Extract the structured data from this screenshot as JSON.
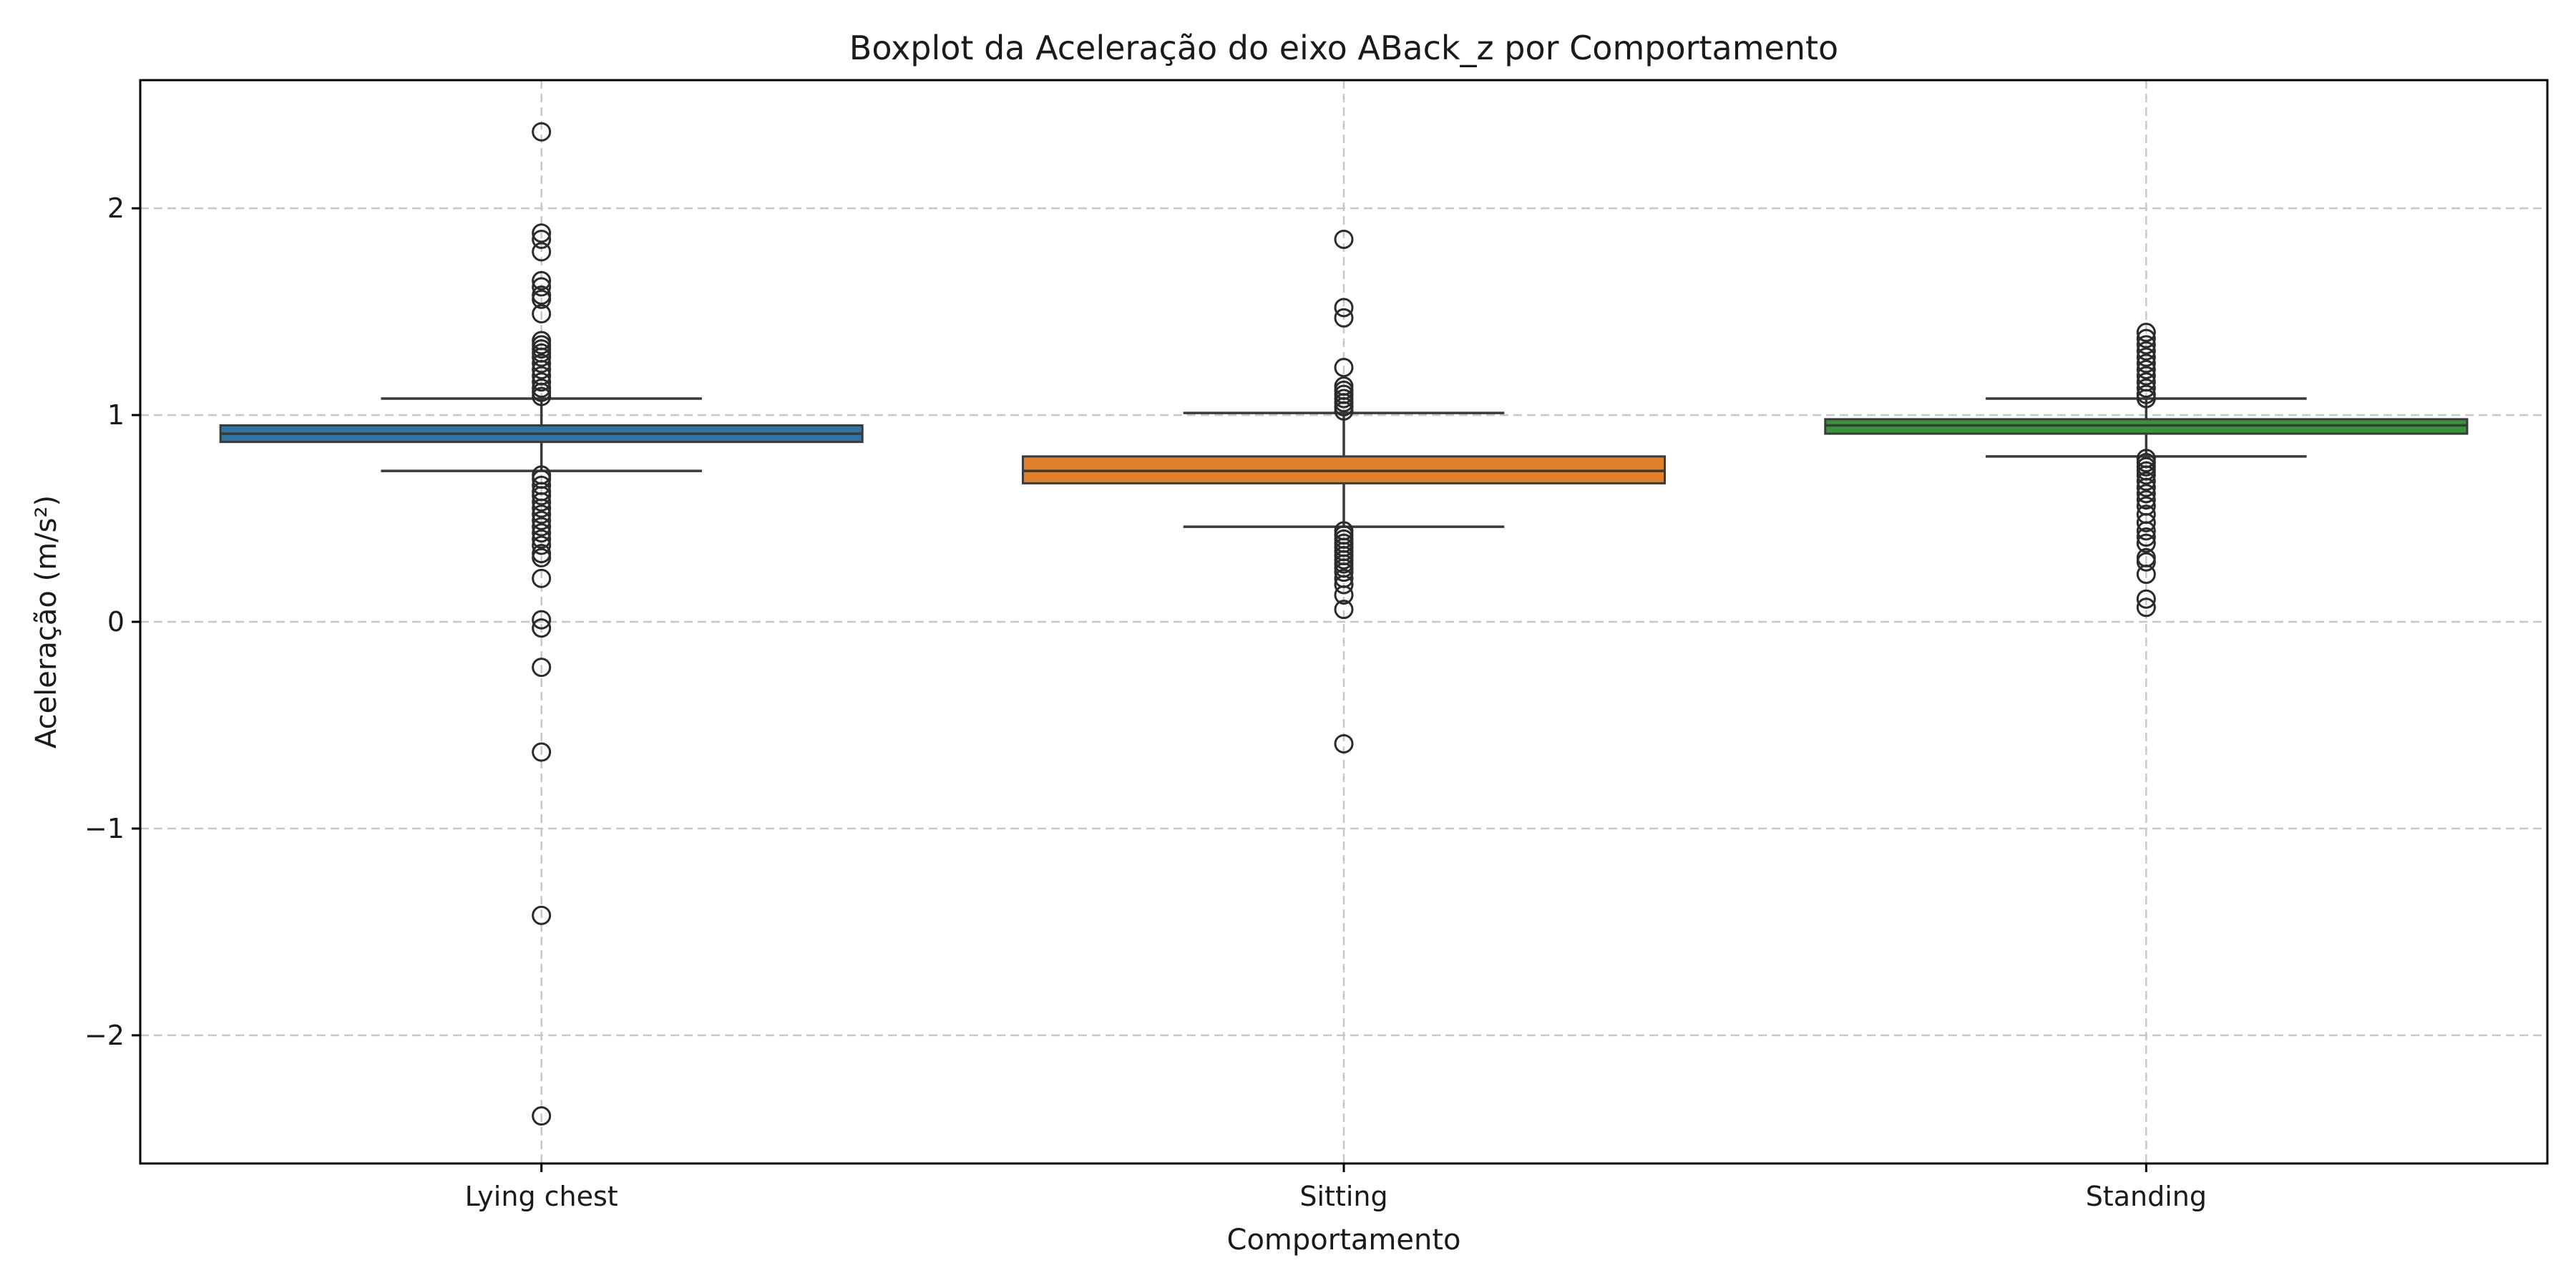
{
  "chart_data": {
    "type": "box",
    "title": "Boxplot da Aceleração do eixo ABack_z por Comportamento",
    "xlabel": "Comportamento",
    "ylabel": "Aceleração (m/s²)",
    "ylim": [
      -2.62,
      2.62
    ],
    "yticks": [
      -2,
      -1,
      0,
      1,
      2
    ],
    "ytick_labels": [
      "−2",
      "−1",
      "0",
      "1",
      "2"
    ],
    "grid": true,
    "legend": "none",
    "categories": [
      "Lying chest",
      "Sitting",
      "Standing"
    ],
    "colors": [
      "#3274a1",
      "#e1812c",
      "#3a923a"
    ],
    "boxes": [
      {
        "category": "Lying chest",
        "whisker_low": 0.73,
        "q1": 0.87,
        "median": 0.91,
        "q3": 0.95,
        "whisker_high": 1.08,
        "outliers": [
          2.37,
          1.88,
          1.85,
          1.79,
          1.65,
          1.62,
          1.58,
          1.56,
          1.49,
          1.36,
          1.34,
          1.32,
          1.3,
          1.28,
          1.25,
          1.22,
          1.19,
          1.16,
          1.13,
          1.11,
          1.09,
          0.71,
          0.69,
          0.66,
          0.63,
          0.61,
          0.58,
          0.55,
          0.52,
          0.49,
          0.46,
          0.43,
          0.4,
          0.37,
          0.33,
          0.31,
          0.21,
          0.01,
          -0.03,
          -0.22,
          -0.63,
          -1.42,
          -2.39
        ]
      },
      {
        "category": "Sitting",
        "whisker_low": 0.46,
        "q1": 0.67,
        "median": 0.73,
        "q3": 0.8,
        "whisker_high": 1.01,
        "outliers": [
          1.85,
          1.52,
          1.47,
          1.23,
          1.14,
          1.12,
          1.1,
          1.08,
          1.06,
          1.04,
          1.02,
          0.44,
          0.42,
          0.4,
          0.38,
          0.36,
          0.34,
          0.32,
          0.3,
          0.28,
          0.26,
          0.24,
          0.21,
          0.18,
          0.13,
          0.06,
          -0.59
        ]
      },
      {
        "category": "Standing",
        "whisker_low": 0.8,
        "q1": 0.91,
        "median": 0.95,
        "q3": 0.98,
        "whisker_high": 1.08,
        "outliers": [
          1.4,
          1.37,
          1.34,
          1.31,
          1.28,
          1.25,
          1.22,
          1.19,
          1.16,
          1.13,
          1.1,
          1.08,
          0.79,
          0.77,
          0.75,
          0.73,
          0.71,
          0.68,
          0.65,
          0.62,
          0.59,
          0.56,
          0.52,
          0.48,
          0.44,
          0.41,
          0.38,
          0.31,
          0.29,
          0.23,
          0.11,
          0.07
        ]
      }
    ]
  }
}
